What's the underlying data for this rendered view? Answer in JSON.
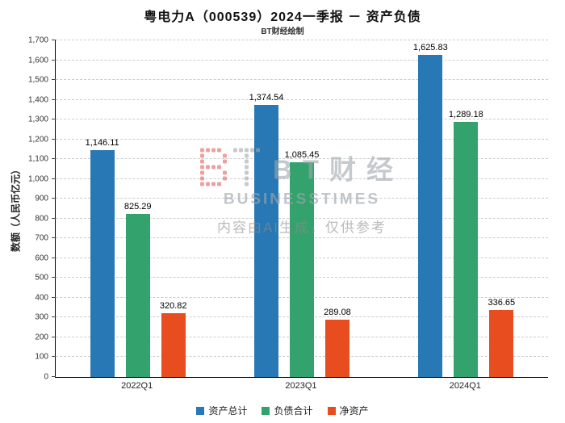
{
  "title": "粤电力A（000539）2024一季报 － 资产负债",
  "subtitle": "BT财经绘制",
  "watermark": {
    "brand_cn": "BT财经",
    "brand_en": "BUSINESSTIMES",
    "ai_notice": "内容由AI生成，仅供参考"
  },
  "chart_data": {
    "type": "bar",
    "title": "粤电力A（000539）2024一季报 － 资产负债",
    "subtitle": "BT财经绘制",
    "categories": [
      "2022Q1",
      "2023Q1",
      "2024Q1"
    ],
    "series": [
      {
        "name": "资产总计",
        "color": "#2878B5",
        "values": [
          1146.11,
          1374.54,
          1625.83
        ]
      },
      {
        "name": "负债合计",
        "color": "#33A26C",
        "values": [
          825.29,
          1085.45,
          1289.18
        ]
      },
      {
        "name": "净资产",
        "color": "#E84D20",
        "values": [
          320.82,
          289.08,
          336.65
        ]
      }
    ],
    "xlabel": "",
    "ylabel": "数额（人民币亿元）",
    "ylim": [
      0,
      1700
    ],
    "ytick_step": 100,
    "grid": true,
    "gridline_style": "dashed",
    "legend_position": "bottom",
    "value_label_format": "#,##0.00"
  }
}
